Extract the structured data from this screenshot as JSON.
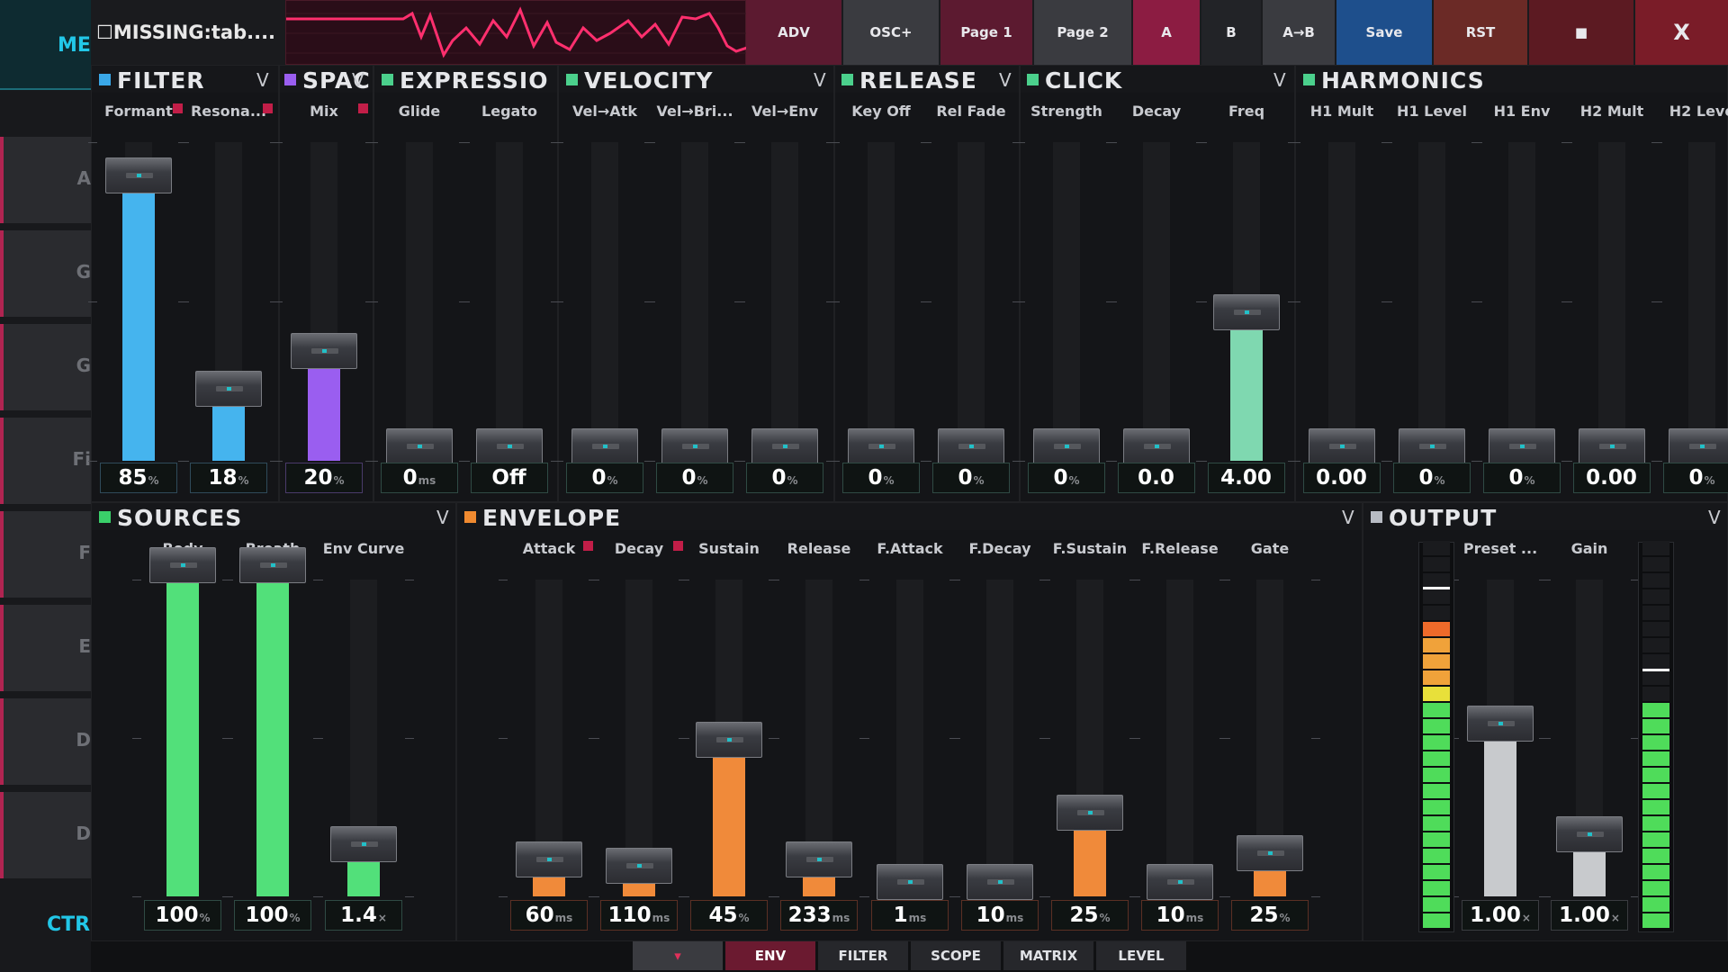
{
  "left": {
    "header": "ME",
    "rows": [
      "A",
      "G",
      "G",
      "Fi",
      "F",
      "E",
      "D",
      "D"
    ],
    "footer": "CTR"
  },
  "top": {
    "title": "☐MISSING:tab....",
    "buttons": [
      {
        "label": "ADV",
        "color": "#5c1a30"
      },
      {
        "label": "OSC+",
        "color": "#3a3b40"
      },
      {
        "label": "Page 1",
        "color": "#5c1a30"
      },
      {
        "label": "Page 2",
        "color": "#3a3b40"
      },
      {
        "label": "A",
        "color": "#8c1c42"
      },
      {
        "label": "B",
        "color": "#222327"
      },
      {
        "label": "A→B",
        "color": "#3a3b40"
      },
      {
        "label": "Save",
        "color": "#1e4f8c"
      },
      {
        "label": "RST",
        "color": "#6b2a26"
      },
      {
        "label": "■",
        "color": "#5c1a22"
      },
      {
        "label": "X",
        "color": "#7a1c28"
      }
    ]
  },
  "panels": {
    "filter": {
      "title": "FILTER",
      "v": "V",
      "color": "#3aa8e8"
    },
    "space": {
      "title": "SPAC",
      "v": "V",
      "color": "#9a5ef0"
    },
    "expression": {
      "title": "EXPRESSIO",
      "color": "#4bd08c"
    },
    "velocity": {
      "title": "VELOCITY",
      "v": "V",
      "color": "#4bd08c"
    },
    "release": {
      "title": "RELEASE",
      "v": "V",
      "color": "#4bd08c"
    },
    "click": {
      "title": "CLICK",
      "v": "V",
      "color": "#4bd08c"
    },
    "harmonics": {
      "title": "HARMONICS",
      "color": "#4bd08c"
    },
    "sources": {
      "title": "SOURCES",
      "v": "V",
      "color": "#3ad06a"
    },
    "envelope": {
      "title": "ENVELOPE",
      "v": "V",
      "color": "#f08a30"
    },
    "output": {
      "title": "OUTPUT",
      "v": "V",
      "color": "#b8bcc4"
    }
  },
  "top_sliders": [
    {
      "label": "Formant",
      "value": "85",
      "unit": "%",
      "level": 0.85,
      "color": "#45b4ee",
      "mod": true
    },
    {
      "label": "Resona...",
      "value": "18",
      "unit": "%",
      "level": 0.18,
      "color": "#45b4ee",
      "mod": true
    },
    {
      "label": "Mix",
      "value": "20",
      "unit": "%",
      "level": 0.3,
      "color": "#9a5ef0",
      "mod": true
    },
    {
      "label": "Glide",
      "value": "0",
      "unit": "ms",
      "level": 0,
      "color": "#4bd08c"
    },
    {
      "label": "Legato",
      "value": "Off",
      "unit": "",
      "level": 0,
      "color": "#4bd08c"
    },
    {
      "label": "Vel→Atk",
      "value": "0",
      "unit": "%",
      "level": 0,
      "color": "#4bd08c"
    },
    {
      "label": "Vel→Bri...",
      "value": "0",
      "unit": "%",
      "level": 0,
      "color": "#4bd08c"
    },
    {
      "label": "Vel→Env",
      "value": "0",
      "unit": "%",
      "level": 0,
      "color": "#4bd08c"
    },
    {
      "label": "Key Off",
      "value": "0",
      "unit": "%",
      "level": 0,
      "color": "#4bd08c"
    },
    {
      "label": "Rel Fade",
      "value": "0",
      "unit": "%",
      "level": 0,
      "color": "#4bd08c"
    },
    {
      "label": "Strength",
      "value": "0",
      "unit": "%",
      "level": 0,
      "color": "#4bd08c"
    },
    {
      "label": "Decay",
      "value": "0.0",
      "unit": "",
      "level": 0,
      "color": "#4bd08c"
    },
    {
      "label": "Freq",
      "value": "4.00",
      "unit": "",
      "level": 0.42,
      "color": "#7fd8b0"
    },
    {
      "label": "H1 Mult",
      "value": "0.00",
      "unit": "",
      "level": 0,
      "color": "#4bd08c"
    },
    {
      "label": "H1 Level",
      "value": "0",
      "unit": "%",
      "level": 0,
      "color": "#4bd08c"
    },
    {
      "label": "H1 Env",
      "value": "0",
      "unit": "%",
      "level": 0,
      "color": "#4bd08c"
    },
    {
      "label": "H2 Mult",
      "value": "0.00",
      "unit": "",
      "level": 0,
      "color": "#4bd08c"
    },
    {
      "label": "H2 Leve",
      "value": "0",
      "unit": "%",
      "level": 0,
      "color": "#4bd08c"
    }
  ],
  "bottom_sliders": [
    {
      "label": "Body",
      "value": "100",
      "unit": "%",
      "level": 1.0,
      "color": "#52e07a"
    },
    {
      "label": "Breath",
      "value": "100",
      "unit": "%",
      "level": 1.0,
      "color": "#52e07a"
    },
    {
      "label": "Env Curve",
      "value": "1.4",
      "unit": "×",
      "level": 0.12,
      "color": "#52e07a"
    },
    {
      "label": "Attack",
      "value": "60",
      "unit": "ms",
      "level": 0.07,
      "color": "#f08a3a",
      "mod": true
    },
    {
      "label": "Decay",
      "value": "110",
      "unit": "ms",
      "level": 0.05,
      "color": "#f08a3a",
      "mod": true
    },
    {
      "label": "Sustain",
      "value": "45",
      "unit": "%",
      "level": 0.45,
      "color": "#f08a3a"
    },
    {
      "label": "Release",
      "value": "233",
      "unit": "ms",
      "level": 0.07,
      "color": "#f08a3a"
    },
    {
      "label": "F.Attack",
      "value": "1",
      "unit": "ms",
      "level": 0,
      "color": "#f08a3a"
    },
    {
      "label": "F.Decay",
      "value": "10",
      "unit": "ms",
      "level": 0,
      "color": "#f08a3a"
    },
    {
      "label": "F.Sustain",
      "value": "25",
      "unit": "%",
      "level": 0.22,
      "color": "#f08a3a"
    },
    {
      "label": "F.Release",
      "value": "10",
      "unit": "ms",
      "level": 0,
      "color": "#f08a3a"
    },
    {
      "label": "Gate",
      "value": "25",
      "unit": "%",
      "level": 0.09,
      "color": "#f08a3a"
    },
    {
      "label": "Preset ...",
      "value": "1.00",
      "unit": "×",
      "level": 0.5,
      "color": "#c8cacd"
    },
    {
      "label": "Gain",
      "value": "1.00",
      "unit": "×",
      "level": 0.15,
      "color": "#c8cacd"
    }
  ],
  "meters": {
    "left_level": 0.79,
    "right_level": 0.58
  },
  "bottom_tabs": [
    {
      "label": "▾",
      "color": "#3a3b40",
      "text": "#e0305a"
    },
    {
      "label": "ENV",
      "color": "#6b1a30",
      "text": "#ffffff"
    },
    {
      "label": "FILTER",
      "color": "#26272b",
      "text": "#e0e2e6"
    },
    {
      "label": "SCOPE",
      "color": "#26272b",
      "text": "#e0e2e6"
    },
    {
      "label": "MATRIX",
      "color": "#26272b",
      "text": "#e0e2e6"
    },
    {
      "label": "LEVEL",
      "color": "#26272b",
      "text": "#e0e2e6"
    }
  ]
}
